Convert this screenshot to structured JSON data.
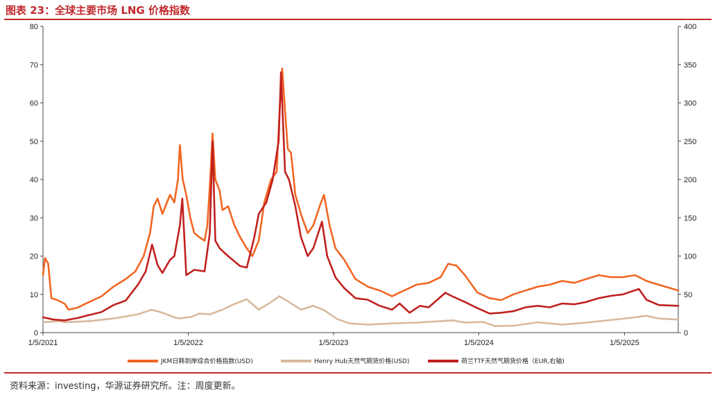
{
  "header": {
    "title": "图表 23：全球主要市场 LNG 价格指数"
  },
  "footer": {
    "source": "资料来源：investing，华源证券研究所。注：周度更新。"
  },
  "colors": {
    "jkm": "#f26522",
    "henry_hub": "#d9b99b",
    "ttf": "#c0201e",
    "accent": "#c0282d"
  },
  "chart_data": {
    "type": "line",
    "x_ticks": [
      "1/5/2021",
      "1/5/2022",
      "1/5/2023",
      "1/5/2024",
      "1/5/2025"
    ],
    "xlim": [
      "2021-01-05",
      "2025-05-20"
    ],
    "y_left": {
      "ylim": [
        0,
        80
      ],
      "ticks": [
        "0",
        "10",
        "20",
        "30",
        "40",
        "50",
        "60",
        "70",
        "80"
      ]
    },
    "y_right": {
      "ylim": [
        0,
        400
      ],
      "ticks": [
        "0",
        "50",
        "100",
        "150",
        "200",
        "250",
        "300",
        "350",
        "400"
      ]
    },
    "grid": false,
    "legend": "bottom",
    "series": [
      {
        "name": "JKM日韩到岸综合价格指数(USD)",
        "axis": "left",
        "points": [
          [
            "2021-01-05",
            15
          ],
          [
            "2021-01-10",
            19.5
          ],
          [
            "2021-01-18",
            18
          ],
          [
            "2021-01-26",
            9
          ],
          [
            "2021-02-10",
            8.5
          ],
          [
            "2021-03-01",
            7.5
          ],
          [
            "2021-03-10",
            6
          ],
          [
            "2021-04-01",
            6.5
          ],
          [
            "2021-05-01",
            8
          ],
          [
            "2021-06-01",
            9.5
          ],
          [
            "2021-07-01",
            12
          ],
          [
            "2021-08-01",
            14
          ],
          [
            "2021-08-25",
            16
          ],
          [
            "2021-09-15",
            20
          ],
          [
            "2021-10-01",
            26
          ],
          [
            "2021-10-10",
            33
          ],
          [
            "2021-10-20",
            35
          ],
          [
            "2021-11-01",
            31
          ],
          [
            "2021-11-20",
            36
          ],
          [
            "2021-12-01",
            34
          ],
          [
            "2021-12-10",
            40
          ],
          [
            "2021-12-15",
            49
          ],
          [
            "2021-12-22",
            40
          ],
          [
            "2021-12-31",
            36
          ],
          [
            "2022-01-10",
            30
          ],
          [
            "2022-01-20",
            26
          ],
          [
            "2022-02-01",
            25
          ],
          [
            "2022-02-15",
            24
          ],
          [
            "2022-02-22",
            28
          ],
          [
            "2022-03-01",
            40
          ],
          [
            "2022-03-07",
            52
          ],
          [
            "2022-03-14",
            40
          ],
          [
            "2022-03-25",
            37
          ],
          [
            "2022-04-01",
            32
          ],
          [
            "2022-04-15",
            33
          ],
          [
            "2022-05-01",
            28
          ],
          [
            "2022-05-15",
            25
          ],
          [
            "2022-06-01",
            22
          ],
          [
            "2022-06-15",
            20
          ],
          [
            "2022-07-01",
            24
          ],
          [
            "2022-07-15",
            34
          ],
          [
            "2022-08-01",
            40
          ],
          [
            "2022-08-15",
            42
          ],
          [
            "2022-08-22",
            57
          ],
          [
            "2022-08-29",
            69
          ],
          [
            "2022-09-05",
            58
          ],
          [
            "2022-09-12",
            48
          ],
          [
            "2022-09-20",
            47
          ],
          [
            "2022-10-01",
            36
          ],
          [
            "2022-10-15",
            31
          ],
          [
            "2022-11-01",
            26
          ],
          [
            "2022-11-15",
            28
          ],
          [
            "2022-12-01",
            33
          ],
          [
            "2022-12-12",
            36
          ],
          [
            "2022-12-26",
            28
          ],
          [
            "2023-01-10",
            22
          ],
          [
            "2023-02-01",
            19
          ],
          [
            "2023-03-01",
            14
          ],
          [
            "2023-04-01",
            12
          ],
          [
            "2023-05-01",
            11
          ],
          [
            "2023-06-01",
            9.5
          ],
          [
            "2023-07-01",
            11
          ],
          [
            "2023-08-01",
            12.5
          ],
          [
            "2023-09-01",
            13
          ],
          [
            "2023-10-01",
            14.5
          ],
          [
            "2023-10-20",
            18
          ],
          [
            "2023-11-10",
            17.5
          ],
          [
            "2023-12-01",
            15
          ],
          [
            "2024-01-01",
            10.5
          ],
          [
            "2024-02-01",
            9
          ],
          [
            "2024-03-01",
            8.5
          ],
          [
            "2024-04-01",
            10
          ],
          [
            "2024-05-01",
            11
          ],
          [
            "2024-06-01",
            12
          ],
          [
            "2024-07-01",
            12.5
          ],
          [
            "2024-08-01",
            13.5
          ],
          [
            "2024-09-01",
            13
          ],
          [
            "2024-10-01",
            14
          ],
          [
            "2024-11-01",
            15
          ],
          [
            "2024-12-01",
            14.5
          ],
          [
            "2025-01-01",
            14.5
          ],
          [
            "2025-02-01",
            15
          ],
          [
            "2025-03-01",
            13.5
          ],
          [
            "2025-04-01",
            12.5
          ],
          [
            "2025-05-20",
            11
          ]
        ]
      },
      {
        "name": "Henry Hub天然气期货价格(USD)",
        "axis": "left",
        "points": [
          [
            "2021-01-05",
            2.7
          ],
          [
            "2021-02-15",
            3.0
          ],
          [
            "2021-03-01",
            2.7
          ],
          [
            "2021-05-01",
            3.0
          ],
          [
            "2021-07-01",
            3.7
          ],
          [
            "2021-09-01",
            4.8
          ],
          [
            "2021-10-05",
            6.0
          ],
          [
            "2021-11-01",
            5.2
          ],
          [
            "2021-12-01",
            4.0
          ],
          [
            "2021-12-15",
            3.7
          ],
          [
            "2022-01-15",
            4.2
          ],
          [
            "2022-02-01",
            5.0
          ],
          [
            "2022-03-01",
            4.8
          ],
          [
            "2022-04-01",
            6.0
          ],
          [
            "2022-05-01",
            7.5
          ],
          [
            "2022-06-01",
            8.7
          ],
          [
            "2022-07-01",
            6.0
          ],
          [
            "2022-08-01",
            8.0
          ],
          [
            "2022-08-22",
            9.5
          ],
          [
            "2022-09-15",
            8.0
          ],
          [
            "2022-10-15",
            6.0
          ],
          [
            "2022-11-15",
            7.0
          ],
          [
            "2022-12-10",
            6.0
          ],
          [
            "2023-01-15",
            3.5
          ],
          [
            "2023-02-15",
            2.4
          ],
          [
            "2023-04-01",
            2.1
          ],
          [
            "2023-06-01",
            2.4
          ],
          [
            "2023-08-01",
            2.6
          ],
          [
            "2023-10-01",
            3.0
          ],
          [
            "2023-11-01",
            3.2
          ],
          [
            "2023-12-01",
            2.6
          ],
          [
            "2024-01-15",
            2.8
          ],
          [
            "2024-02-15",
            1.7
          ],
          [
            "2024-04-01",
            1.8
          ],
          [
            "2024-06-01",
            2.7
          ],
          [
            "2024-08-01",
            2.1
          ],
          [
            "2024-10-01",
            2.6
          ],
          [
            "2024-12-01",
            3.3
          ],
          [
            "2025-01-15",
            3.8
          ],
          [
            "2025-03-01",
            4.4
          ],
          [
            "2025-04-01",
            3.7
          ],
          [
            "2025-05-20",
            3.4
          ]
        ]
      },
      {
        "name": "荷兰TTF天然气期货价格（EUR,右轴)",
        "axis": "right",
        "points": [
          [
            "2021-01-05",
            20
          ],
          [
            "2021-02-01",
            17
          ],
          [
            "2021-03-01",
            16
          ],
          [
            "2021-04-01",
            19
          ],
          [
            "2021-05-01",
            23
          ],
          [
            "2021-06-01",
            27
          ],
          [
            "2021-07-01",
            36
          ],
          [
            "2021-08-01",
            42
          ],
          [
            "2021-09-01",
            63
          ],
          [
            "2021-09-20",
            80
          ],
          [
            "2021-10-06",
            115
          ],
          [
            "2021-10-20",
            88
          ],
          [
            "2021-11-01",
            78
          ],
          [
            "2021-11-20",
            95
          ],
          [
            "2021-12-01",
            100
          ],
          [
            "2021-12-15",
            140
          ],
          [
            "2021-12-21",
            175
          ],
          [
            "2021-12-31",
            75
          ],
          [
            "2022-01-20",
            82
          ],
          [
            "2022-02-15",
            80
          ],
          [
            "2022-02-28",
            130
          ],
          [
            "2022-03-07",
            250
          ],
          [
            "2022-03-14",
            120
          ],
          [
            "2022-03-25",
            110
          ],
          [
            "2022-04-15",
            100
          ],
          [
            "2022-05-15",
            87
          ],
          [
            "2022-06-01",
            85
          ],
          [
            "2022-06-20",
            125
          ],
          [
            "2022-07-01",
            155
          ],
          [
            "2022-07-20",
            170
          ],
          [
            "2022-08-05",
            200
          ],
          [
            "2022-08-20",
            250
          ],
          [
            "2022-08-26",
            340
          ],
          [
            "2022-09-05",
            210
          ],
          [
            "2022-09-15",
            200
          ],
          [
            "2022-10-01",
            165
          ],
          [
            "2022-10-15",
            125
          ],
          [
            "2022-11-01",
            100
          ],
          [
            "2022-11-15",
            110
          ],
          [
            "2022-12-07",
            145
          ],
          [
            "2022-12-20",
            100
          ],
          [
            "2023-01-10",
            72
          ],
          [
            "2023-02-01",
            58
          ],
          [
            "2023-03-01",
            45
          ],
          [
            "2023-04-01",
            43
          ],
          [
            "2023-05-01",
            35
          ],
          [
            "2023-06-01",
            30
          ],
          [
            "2023-06-20",
            38
          ],
          [
            "2023-07-15",
            26
          ],
          [
            "2023-08-10",
            35
          ],
          [
            "2023-09-01",
            33
          ],
          [
            "2023-10-13",
            52
          ],
          [
            "2023-11-01",
            47
          ],
          [
            "2023-12-01",
            40
          ],
          [
            "2024-01-01",
            32
          ],
          [
            "2024-02-01",
            25
          ],
          [
            "2024-03-01",
            26
          ],
          [
            "2024-04-01",
            28
          ],
          [
            "2024-05-01",
            33
          ],
          [
            "2024-06-01",
            35
          ],
          [
            "2024-07-01",
            33
          ],
          [
            "2024-08-01",
            38
          ],
          [
            "2024-09-01",
            37
          ],
          [
            "2024-10-01",
            40
          ],
          [
            "2024-11-01",
            45
          ],
          [
            "2024-12-01",
            48
          ],
          [
            "2025-01-01",
            50
          ],
          [
            "2025-02-10",
            57
          ],
          [
            "2025-03-01",
            43
          ],
          [
            "2025-04-01",
            36
          ],
          [
            "2025-05-20",
            35
          ]
        ]
      }
    ]
  }
}
